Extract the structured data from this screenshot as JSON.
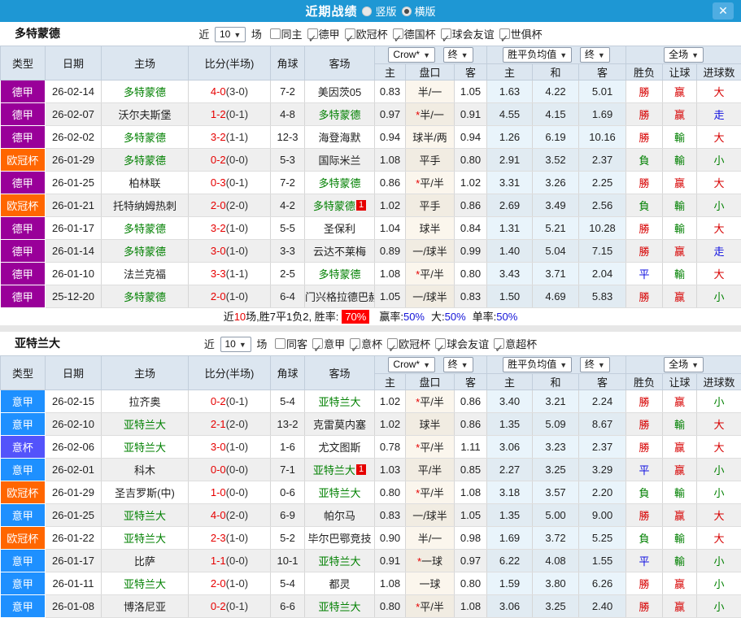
{
  "titlebar": {
    "title": "近期战绩",
    "radios": [
      {
        "label": "竖版",
        "checked": false
      },
      {
        "label": "横版",
        "checked": true
      }
    ],
    "close_icon": "✕",
    "bar_color": "#1e97d4"
  },
  "table_header": {
    "type": "类型",
    "date": "日期",
    "home": "主场",
    "score": "比分(半场)",
    "corner": "角球",
    "away": "客场",
    "odds_main": "主",
    "odds_handicap": "盘口",
    "odds_away": "客",
    "mean_main": "主",
    "mean_draw": "和",
    "mean_away": "客",
    "result": "胜负",
    "handicap_result": "让球",
    "goals": "进球数",
    "dropdowns": {
      "company": "Crow*",
      "company_time": "终",
      "mean": "胜平负均值",
      "mean_time": "终",
      "scope": "全场",
      "arrow": "▼"
    }
  },
  "colors": {
    "type": {
      "德甲": "#990099",
      "欧冠杯": "#ff6600",
      "意甲": "#1e90ff",
      "意杯": "#5353fb"
    },
    "team_green": "#008000",
    "score_red": "#e60000",
    "win": "#d70000",
    "lose": "#008000",
    "draw": "#1010e0"
  },
  "sections": [
    {
      "team": "多特蒙德",
      "filter": {
        "near": "近",
        "count": "10",
        "games": "场",
        "venue": {
          "label": "同主",
          "checked": false
        },
        "leagues": [
          {
            "label": "德甲",
            "checked": true
          },
          {
            "label": "欧冠杯",
            "checked": true
          },
          {
            "label": "德国杯",
            "checked": true
          },
          {
            "label": "球会友谊",
            "checked": true
          },
          {
            "label": "世俱杯",
            "checked": true
          }
        ]
      },
      "rows": [
        {
          "type": "德甲",
          "date": "26-02-14",
          "home": "多特蒙德",
          "home_is_team": true,
          "score": "4-0",
          "half": "(3-0)",
          "corner": "7-2",
          "away": "美因茨05",
          "away_is_team": false,
          "away_badge": "",
          "o1": "0.83",
          "star": false,
          "handicap": "半/一",
          "o2": "1.05",
          "m1": "1.63",
          "m2": "4.22",
          "m3": "5.01",
          "res": "勝",
          "res_c": "win",
          "let": "赢",
          "let_c": "win",
          "big": "大",
          "big_c": "win"
        },
        {
          "type": "德甲",
          "date": "26-02-07",
          "home": "沃尔夫斯堡",
          "home_is_team": false,
          "score": "1-2",
          "half": "(0-1)",
          "corner": "4-8",
          "away": "多特蒙德",
          "away_is_team": true,
          "away_badge": "",
          "o1": "0.97",
          "star": true,
          "handicap": "半/一",
          "o2": "0.91",
          "m1": "4.55",
          "m2": "4.15",
          "m3": "1.69",
          "res": "勝",
          "res_c": "win",
          "let": "赢",
          "let_c": "win",
          "big": "走",
          "big_c": "draw"
        },
        {
          "type": "德甲",
          "date": "26-02-02",
          "home": "多特蒙德",
          "home_is_team": true,
          "score": "3-2",
          "half": "(1-1)",
          "corner": "12-3",
          "away": "海登海默",
          "away_is_team": false,
          "away_badge": "",
          "o1": "0.94",
          "star": false,
          "handicap": "球半/两",
          "o2": "0.94",
          "m1": "1.26",
          "m2": "6.19",
          "m3": "10.16",
          "res": "勝",
          "res_c": "win",
          "let": "輸",
          "let_c": "lose",
          "big": "大",
          "big_c": "win"
        },
        {
          "type": "欧冠杯",
          "date": "26-01-29",
          "home": "多特蒙德",
          "home_is_team": true,
          "score": "0-2",
          "half": "(0-0)",
          "corner": "5-3",
          "away": "国际米兰",
          "away_is_team": false,
          "away_badge": "",
          "o1": "1.08",
          "star": false,
          "handicap": "平手",
          "o2": "0.80",
          "m1": "2.91",
          "m2": "3.52",
          "m3": "2.37",
          "res": "負",
          "res_c": "lose",
          "let": "輸",
          "let_c": "lose",
          "big": "小",
          "big_c": "lose"
        },
        {
          "type": "德甲",
          "date": "26-01-25",
          "home": "柏林联",
          "home_is_team": false,
          "score": "0-3",
          "half": "(0-1)",
          "corner": "7-2",
          "away": "多特蒙德",
          "away_is_team": true,
          "away_badge": "",
          "o1": "0.86",
          "star": true,
          "handicap": "平/半",
          "o2": "1.02",
          "m1": "3.31",
          "m2": "3.26",
          "m3": "2.25",
          "res": "勝",
          "res_c": "win",
          "let": "赢",
          "let_c": "win",
          "big": "大",
          "big_c": "win"
        },
        {
          "type": "欧冠杯",
          "date": "26-01-21",
          "home": "托特纳姆热刺",
          "home_is_team": false,
          "score": "2-0",
          "half": "(2-0)",
          "corner": "4-2",
          "away": "多特蒙德",
          "away_is_team": true,
          "away_badge": "1",
          "o1": "1.02",
          "star": false,
          "handicap": "平手",
          "o2": "0.86",
          "m1": "2.69",
          "m2": "3.49",
          "m3": "2.56",
          "res": "負",
          "res_c": "lose",
          "let": "輸",
          "let_c": "lose",
          "big": "小",
          "big_c": "lose"
        },
        {
          "type": "德甲",
          "date": "26-01-17",
          "home": "多特蒙德",
          "home_is_team": true,
          "score": "3-2",
          "half": "(1-0)",
          "corner": "5-5",
          "away": "圣保利",
          "away_is_team": false,
          "away_badge": "",
          "o1": "1.04",
          "star": false,
          "handicap": "球半",
          "o2": "0.84",
          "m1": "1.31",
          "m2": "5.21",
          "m3": "10.28",
          "res": "勝",
          "res_c": "win",
          "let": "輸",
          "let_c": "lose",
          "big": "大",
          "big_c": "win"
        },
        {
          "type": "德甲",
          "date": "26-01-14",
          "home": "多特蒙德",
          "home_is_team": true,
          "score": "3-0",
          "half": "(1-0)",
          "corner": "3-3",
          "away": "云达不莱梅",
          "away_is_team": false,
          "away_badge": "",
          "o1": "0.89",
          "star": false,
          "handicap": "一/球半",
          "o2": "0.99",
          "m1": "1.40",
          "m2": "5.04",
          "m3": "7.15",
          "res": "勝",
          "res_c": "win",
          "let": "赢",
          "let_c": "win",
          "big": "走",
          "big_c": "draw"
        },
        {
          "type": "德甲",
          "date": "26-01-10",
          "home": "法兰克福",
          "home_is_team": false,
          "score": "3-3",
          "half": "(1-1)",
          "corner": "2-5",
          "away": "多特蒙德",
          "away_is_team": true,
          "away_badge": "",
          "o1": "1.08",
          "star": true,
          "handicap": "平/半",
          "o2": "0.80",
          "m1": "3.43",
          "m2": "3.71",
          "m3": "2.04",
          "res": "平",
          "res_c": "draw",
          "let": "輸",
          "let_c": "lose",
          "big": "大",
          "big_c": "win"
        },
        {
          "type": "德甲",
          "date": "25-12-20",
          "home": "多特蒙德",
          "home_is_team": true,
          "score": "2-0",
          "half": "(1-0)",
          "corner": "6-4",
          "away": "门兴格拉德巴赫",
          "away_is_team": false,
          "away_badge": "",
          "o1": "1.05",
          "star": false,
          "handicap": "一/球半",
          "o2": "0.83",
          "m1": "1.50",
          "m2": "4.69",
          "m3": "5.83",
          "res": "勝",
          "res_c": "win",
          "let": "赢",
          "let_c": "win",
          "big": "小",
          "big_c": "lose"
        }
      ],
      "summary": {
        "prefix": "近",
        "count": "10",
        "mid": "场,胜7平1负2, 胜率:",
        "rate": "70%",
        "stats": [
          {
            "label": "赢率:",
            "value": "50%"
          },
          {
            "label": "大:",
            "value": "50%"
          },
          {
            "label": "单率:",
            "value": "50%"
          }
        ]
      }
    },
    {
      "team": "亚特兰大",
      "filter": {
        "near": "近",
        "count": "10",
        "games": "场",
        "venue": {
          "label": "同客",
          "checked": false
        },
        "leagues": [
          {
            "label": "意甲",
            "checked": true
          },
          {
            "label": "意杯",
            "checked": true
          },
          {
            "label": "欧冠杯",
            "checked": true
          },
          {
            "label": "球会友谊",
            "checked": true
          },
          {
            "label": "意超杯",
            "checked": true
          }
        ]
      },
      "rows": [
        {
          "type": "意甲",
          "date": "26-02-15",
          "home": "拉齐奥",
          "home_is_team": false,
          "score": "0-2",
          "half": "(0-1)",
          "corner": "5-4",
          "away": "亚特兰大",
          "away_is_team": true,
          "away_badge": "",
          "o1": "1.02",
          "star": true,
          "handicap": "平/半",
          "o2": "0.86",
          "m1": "3.40",
          "m2": "3.21",
          "m3": "2.24",
          "res": "勝",
          "res_c": "win",
          "let": "赢",
          "let_c": "win",
          "big": "小",
          "big_c": "lose"
        },
        {
          "type": "意甲",
          "date": "26-02-10",
          "home": "亚特兰大",
          "home_is_team": true,
          "score": "2-1",
          "half": "(2-0)",
          "corner": "13-2",
          "away": "克雷莫内塞",
          "away_is_team": false,
          "away_badge": "",
          "o1": "1.02",
          "star": false,
          "handicap": "球半",
          "o2": "0.86",
          "m1": "1.35",
          "m2": "5.09",
          "m3": "8.67",
          "res": "勝",
          "res_c": "win",
          "let": "輸",
          "let_c": "lose",
          "big": "大",
          "big_c": "win"
        },
        {
          "type": "意杯",
          "date": "26-02-06",
          "home": "亚特兰大",
          "home_is_team": true,
          "score": "3-0",
          "half": "(1-0)",
          "corner": "1-6",
          "away": "尤文图斯",
          "away_is_team": false,
          "away_badge": "",
          "o1": "0.78",
          "star": true,
          "handicap": "平/半",
          "o2": "1.11",
          "m1": "3.06",
          "m2": "3.23",
          "m3": "2.37",
          "res": "勝",
          "res_c": "win",
          "let": "赢",
          "let_c": "win",
          "big": "大",
          "big_c": "win"
        },
        {
          "type": "意甲",
          "date": "26-02-01",
          "home": "科木",
          "home_is_team": false,
          "score": "0-0",
          "half": "(0-0)",
          "corner": "7-1",
          "away": "亚特兰大",
          "away_is_team": true,
          "away_badge": "1",
          "o1": "1.03",
          "star": false,
          "handicap": "平/半",
          "o2": "0.85",
          "m1": "2.27",
          "m2": "3.25",
          "m3": "3.29",
          "res": "平",
          "res_c": "draw",
          "let": "赢",
          "let_c": "win",
          "big": "小",
          "big_c": "lose"
        },
        {
          "type": "欧冠杯",
          "date": "26-01-29",
          "home": "圣吉罗斯(中)",
          "home_is_team": false,
          "score": "1-0",
          "half": "(0-0)",
          "corner": "0-6",
          "away": "亚特兰大",
          "away_is_team": true,
          "away_badge": "",
          "o1": "0.80",
          "star": true,
          "handicap": "平/半",
          "o2": "1.08",
          "m1": "3.18",
          "m2": "3.57",
          "m3": "2.20",
          "res": "負",
          "res_c": "lose",
          "let": "輸",
          "let_c": "lose",
          "big": "小",
          "big_c": "lose"
        },
        {
          "type": "意甲",
          "date": "26-01-25",
          "home": "亚特兰大",
          "home_is_team": true,
          "score": "4-0",
          "half": "(2-0)",
          "corner": "6-9",
          "away": "帕尔马",
          "away_is_team": false,
          "away_badge": "",
          "o1": "0.83",
          "star": false,
          "handicap": "一/球半",
          "o2": "1.05",
          "m1": "1.35",
          "m2": "5.00",
          "m3": "9.00",
          "res": "勝",
          "res_c": "win",
          "let": "赢",
          "let_c": "win",
          "big": "大",
          "big_c": "win"
        },
        {
          "type": "欧冠杯",
          "date": "26-01-22",
          "home": "亚特兰大",
          "home_is_team": true,
          "score": "2-3",
          "half": "(1-0)",
          "corner": "5-2",
          "away": "毕尔巴鄂竞技",
          "away_is_team": false,
          "away_badge": "",
          "o1": "0.90",
          "star": false,
          "handicap": "半/一",
          "o2": "0.98",
          "m1": "1.69",
          "m2": "3.72",
          "m3": "5.25",
          "res": "負",
          "res_c": "lose",
          "let": "輸",
          "let_c": "lose",
          "big": "大",
          "big_c": "win"
        },
        {
          "type": "意甲",
          "date": "26-01-17",
          "home": "比萨",
          "home_is_team": false,
          "score": "1-1",
          "half": "(0-0)",
          "corner": "10-1",
          "away": "亚特兰大",
          "away_is_team": true,
          "away_badge": "",
          "o1": "0.91",
          "star": true,
          "handicap": "一球",
          "o2": "0.97",
          "m1": "6.22",
          "m2": "4.08",
          "m3": "1.55",
          "res": "平",
          "res_c": "draw",
          "let": "輸",
          "let_c": "lose",
          "big": "小",
          "big_c": "lose"
        },
        {
          "type": "意甲",
          "date": "26-01-11",
          "home": "亚特兰大",
          "home_is_team": true,
          "score": "2-0",
          "half": "(1-0)",
          "corner": "5-4",
          "away": "都灵",
          "away_is_team": false,
          "away_badge": "",
          "o1": "1.08",
          "star": false,
          "handicap": "一球",
          "o2": "0.80",
          "m1": "1.59",
          "m2": "3.80",
          "m3": "6.26",
          "res": "勝",
          "res_c": "win",
          "let": "赢",
          "let_c": "win",
          "big": "小",
          "big_c": "lose"
        },
        {
          "type": "意甲",
          "date": "26-01-08",
          "home": "博洛尼亚",
          "home_is_team": false,
          "score": "0-2",
          "half": "(0-1)",
          "corner": "6-6",
          "away": "亚特兰大",
          "away_is_team": true,
          "away_badge": "",
          "o1": "0.80",
          "star": true,
          "handicap": "平/半",
          "o2": "1.08",
          "m1": "3.06",
          "m2": "3.25",
          "m3": "2.40",
          "res": "勝",
          "res_c": "win",
          "let": "赢",
          "let_c": "win",
          "big": "小",
          "big_c": "lose"
        }
      ]
    }
  ]
}
